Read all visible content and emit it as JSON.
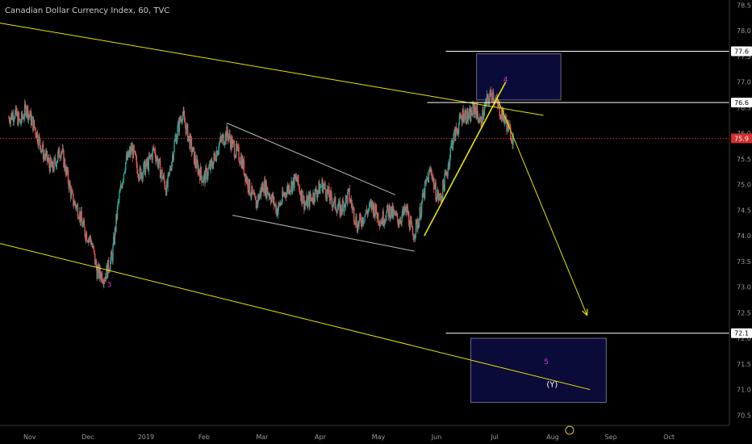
{
  "header": {
    "title": "Canadian Dollar Currency Index, 60, TVC"
  },
  "colors": {
    "background": "#000000",
    "up_candle": "#26a69a",
    "down_candle": "#ef5350",
    "trendline": "#e6e600",
    "white_line": "#ffffff",
    "current_price": "#d32f2f",
    "box_fill": "#0b0b3a",
    "wave_label": "#d040d0",
    "axis_text": "#9a9a9a"
  },
  "chart_data": {
    "type": "candlestick",
    "title": "Canadian Dollar Currency Index, 60, TVC",
    "y_axis": {
      "ticks": [
        78.5,
        78.0,
        77.5,
        77.0,
        76.5,
        76.0,
        75.5,
        75.0,
        74.5,
        74.0,
        73.5,
        73.0,
        72.5,
        72.0,
        71.5,
        71.0,
        70.5
      ],
      "tick_labels": [
        "78.5",
        "78.0",
        "77.5",
        "77.0",
        "76.5",
        "76.0",
        "75.5",
        "75.0",
        "74.5",
        "74.0",
        "73.5",
        "73.0",
        "72.5",
        "72.0",
        "71.5",
        "71.0",
        "70.5"
      ],
      "range": [
        70.3,
        78.6
      ],
      "price_tags": [
        {
          "value": 77.6,
          "label": "77.6",
          "style": "white"
        },
        {
          "value": 76.6,
          "label": "76.6",
          "style": "white"
        },
        {
          "value": 75.9,
          "label": "75.9",
          "style": "red"
        },
        {
          "value": 72.1,
          "label": "72.1",
          "style": "white"
        }
      ]
    },
    "x_axis": {
      "labels": [
        "Nov",
        "Dec",
        "2019",
        "Feb",
        "Mar",
        "Apr",
        "May",
        "Jun",
        "Jul",
        "Aug",
        "Sep",
        "Oct"
      ],
      "month_index": [
        0,
        1,
        2,
        3,
        4,
        5,
        6,
        7,
        8,
        9,
        10,
        11
      ],
      "range": [
        -0.15,
        12.4
      ]
    },
    "price_path": [
      [
        0.0,
        76.3
      ],
      [
        0.1,
        76.4
      ],
      [
        0.2,
        76.2
      ],
      [
        0.3,
        76.5
      ],
      [
        0.45,
        76.1
      ],
      [
        0.6,
        75.6
      ],
      [
        0.75,
        75.3
      ],
      [
        0.9,
        75.7
      ],
      [
        1.0,
        75.2
      ],
      [
        1.1,
        74.7
      ],
      [
        1.2,
        74.5
      ],
      [
        1.3,
        74.1
      ],
      [
        1.42,
        73.9
      ],
      [
        1.52,
        73.3
      ],
      [
        1.65,
        73.2
      ],
      [
        1.78,
        73.6
      ],
      [
        1.88,
        74.6
      ],
      [
        2.0,
        75.4
      ],
      [
        2.12,
        75.7
      ],
      [
        2.25,
        75.2
      ],
      [
        2.4,
        75.4
      ],
      [
        2.5,
        75.7
      ],
      [
        2.6,
        75.3
      ],
      [
        2.72,
        74.9
      ],
      [
        2.85,
        75.8
      ],
      [
        2.98,
        76.4
      ],
      [
        3.1,
        75.9
      ],
      [
        3.22,
        75.4
      ],
      [
        3.35,
        75.1
      ],
      [
        3.5,
        75.4
      ],
      [
        3.62,
        75.8
      ],
      [
        3.76,
        76.0
      ],
      [
        3.88,
        75.7
      ],
      [
        4.0,
        75.5
      ],
      [
        4.12,
        75.0
      ],
      [
        4.25,
        74.6
      ],
      [
        4.38,
        75.0
      ],
      [
        4.5,
        74.8
      ],
      [
        4.62,
        74.5
      ],
      [
        4.78,
        74.9
      ],
      [
        4.95,
        75.1
      ],
      [
        5.1,
        74.6
      ],
      [
        5.25,
        74.8
      ],
      [
        5.4,
        75.0
      ],
      [
        5.55,
        74.7
      ],
      [
        5.7,
        74.5
      ],
      [
        5.85,
        74.8
      ],
      [
        6.0,
        74.2
      ],
      [
        6.12,
        74.4
      ],
      [
        6.25,
        74.6
      ],
      [
        6.4,
        74.3
      ],
      [
        6.55,
        74.5
      ],
      [
        6.7,
        74.3
      ],
      [
        6.85,
        74.5
      ],
      [
        6.95,
        74.0
      ],
      [
        7.05,
        74.3
      ],
      [
        7.12,
        74.7
      ],
      [
        7.2,
        75.1
      ],
      [
        7.27,
        75.3
      ],
      [
        7.33,
        74.9
      ],
      [
        7.42,
        74.7
      ],
      [
        7.55,
        75.3
      ],
      [
        7.62,
        75.8
      ],
      [
        7.72,
        76.1
      ],
      [
        7.82,
        76.4
      ],
      [
        7.92,
        76.3
      ],
      [
        8.02,
        76.5
      ],
      [
        8.12,
        76.2
      ],
      [
        8.22,
        76.6
      ],
      [
        8.32,
        76.8
      ],
      [
        8.42,
        76.5
      ],
      [
        8.52,
        76.3
      ],
      [
        8.6,
        76.1
      ],
      [
        8.68,
        75.9
      ]
    ],
    "annotations": {
      "wave_labels": [
        {
          "text": "3",
          "x": 1.73,
          "y": 73.0
        },
        {
          "text": "4",
          "x": 8.55,
          "y": 77.0
        },
        {
          "text": "5",
          "x": 9.25,
          "y": 71.5
        },
        {
          "text": "(Y)",
          "x": 9.35,
          "y": 71.05
        }
      ],
      "yellow_lines": [
        {
          "name": "upper-channel",
          "from": [
            -0.15,
            78.15
          ],
          "to": [
            9.2,
            76.35
          ]
        },
        {
          "name": "lower-channel",
          "from": [
            -0.15,
            73.85
          ],
          "to": [
            10.0,
            71.0
          ]
        },
        {
          "name": "rally-trendline",
          "from": [
            7.15,
            74.0
          ],
          "to": [
            8.55,
            77.0
          ]
        },
        {
          "name": "projection-arrow",
          "from": [
            8.4,
            76.7
          ],
          "to": [
            9.95,
            72.45
          ]
        }
      ],
      "gray_lines": [
        {
          "name": "wedge-top",
          "from": [
            3.75,
            76.2
          ],
          "to": [
            6.65,
            74.8
          ]
        },
        {
          "name": "wedge-bottom",
          "from": [
            3.85,
            74.4
          ],
          "to": [
            6.98,
            73.7
          ]
        }
      ],
      "horizontal_lines": [
        {
          "name": "level-77.6",
          "value": 77.6,
          "from_x": 7.52
        },
        {
          "name": "level-76.6",
          "value": 76.6,
          "from_x": 7.2
        },
        {
          "name": "level-72.1",
          "value": 72.1,
          "from_x": 7.52
        }
      ],
      "boxes": [
        {
          "name": "box-wave-4",
          "x": [
            8.05,
            9.5
          ],
          "y": [
            76.65,
            77.55
          ]
        },
        {
          "name": "box-wave-5",
          "x": [
            7.95,
            10.28
          ],
          "y": [
            70.75,
            72.0
          ]
        }
      ]
    }
  }
}
